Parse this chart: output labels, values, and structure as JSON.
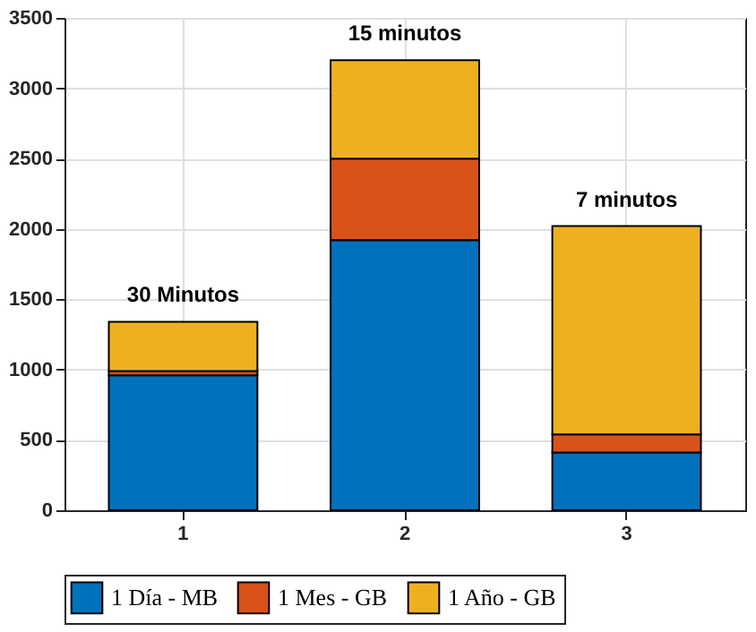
{
  "chart_data": {
    "type": "bar",
    "stacked": true,
    "categories": [
      "1",
      "2",
      "3"
    ],
    "series": [
      {
        "name": "1 Día - MB",
        "color": "#0072bd",
        "values": [
          960,
          1920,
          410
        ]
      },
      {
        "name": "1 Mes - GB",
        "color": "#d95319",
        "values": [
          30,
          580,
          130
        ]
      },
      {
        "name": "1 Año - GB",
        "color": "#edb120",
        "values": [
          350,
          700,
          1480
        ]
      }
    ],
    "ylim": [
      0,
      3500
    ],
    "yticks": [
      0,
      500,
      1000,
      1500,
      2000,
      2500,
      3000,
      3500
    ],
    "grid": true,
    "legend": "bottom",
    "annotations": [
      "30 Minutos",
      "15 minutos",
      "7 minutos"
    ]
  }
}
